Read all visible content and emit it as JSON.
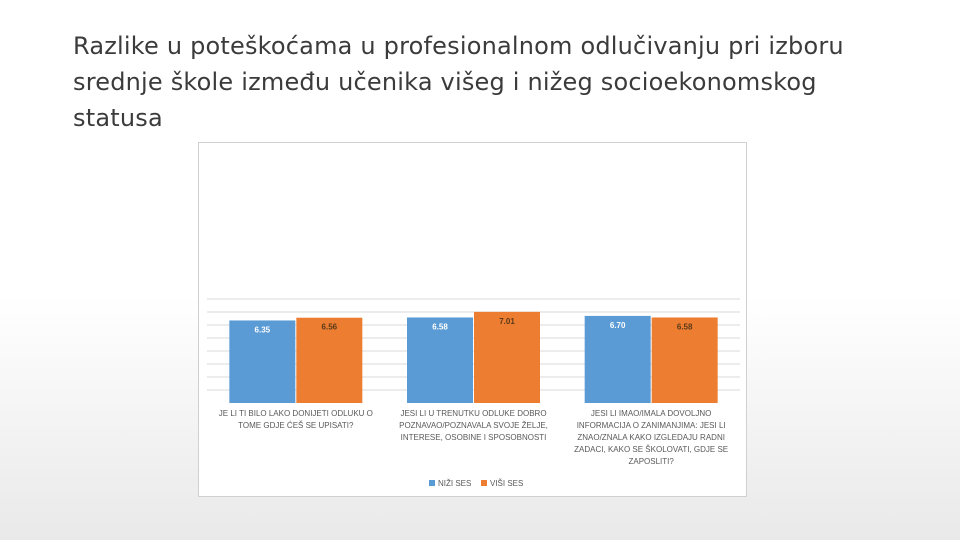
{
  "slide": {
    "title": "Razlike u poteškoćama u profesionalnom odlučivanju pri izboru srednje škole između učenika višeg i nižeg socioekonomskog statusa"
  },
  "chart_data": {
    "type": "bar",
    "categories": [
      [
        "JE LI TI BILO LAKO DONIJETI ODLUKU O",
        "TOME GDJE ĆEŠ SE UPISATI?"
      ],
      [
        "JESI LI U TRENUTKU ODLUKE DOBRO",
        "POZNAVAO/POZNAVALA SVOJE ŽELJE,",
        "INTERESE, OSOBINE I SPOSOBNOSTI"
      ],
      [
        "JESI LI IMAO/IMALA DOVOLJNO",
        "INFORMACIJA O ZANIMANJIMA: JESI LI",
        "ZNAO/ZNALA KAKO IZGLEDAJU RADNI",
        "ZADACI, KAKO SE ŠKOLOVATI, GDJE SE",
        "ZAPOSLITI?"
      ]
    ],
    "series": [
      {
        "name": "NIŽI SES",
        "color": "#5b9bd5",
        "values": [
          6.35,
          6.58,
          6.7
        ],
        "labels": [
          "6.35",
          "6.58",
          "6.70"
        ]
      },
      {
        "name": "VIŠI SES",
        "color": "#ed7d31",
        "values": [
          6.56,
          7.01,
          6.58
        ],
        "labels": [
          "6.56",
          "7.01",
          "6.58"
        ]
      }
    ],
    "ylim": [
      0,
      8
    ],
    "grid": true,
    "legend": "bottom"
  }
}
